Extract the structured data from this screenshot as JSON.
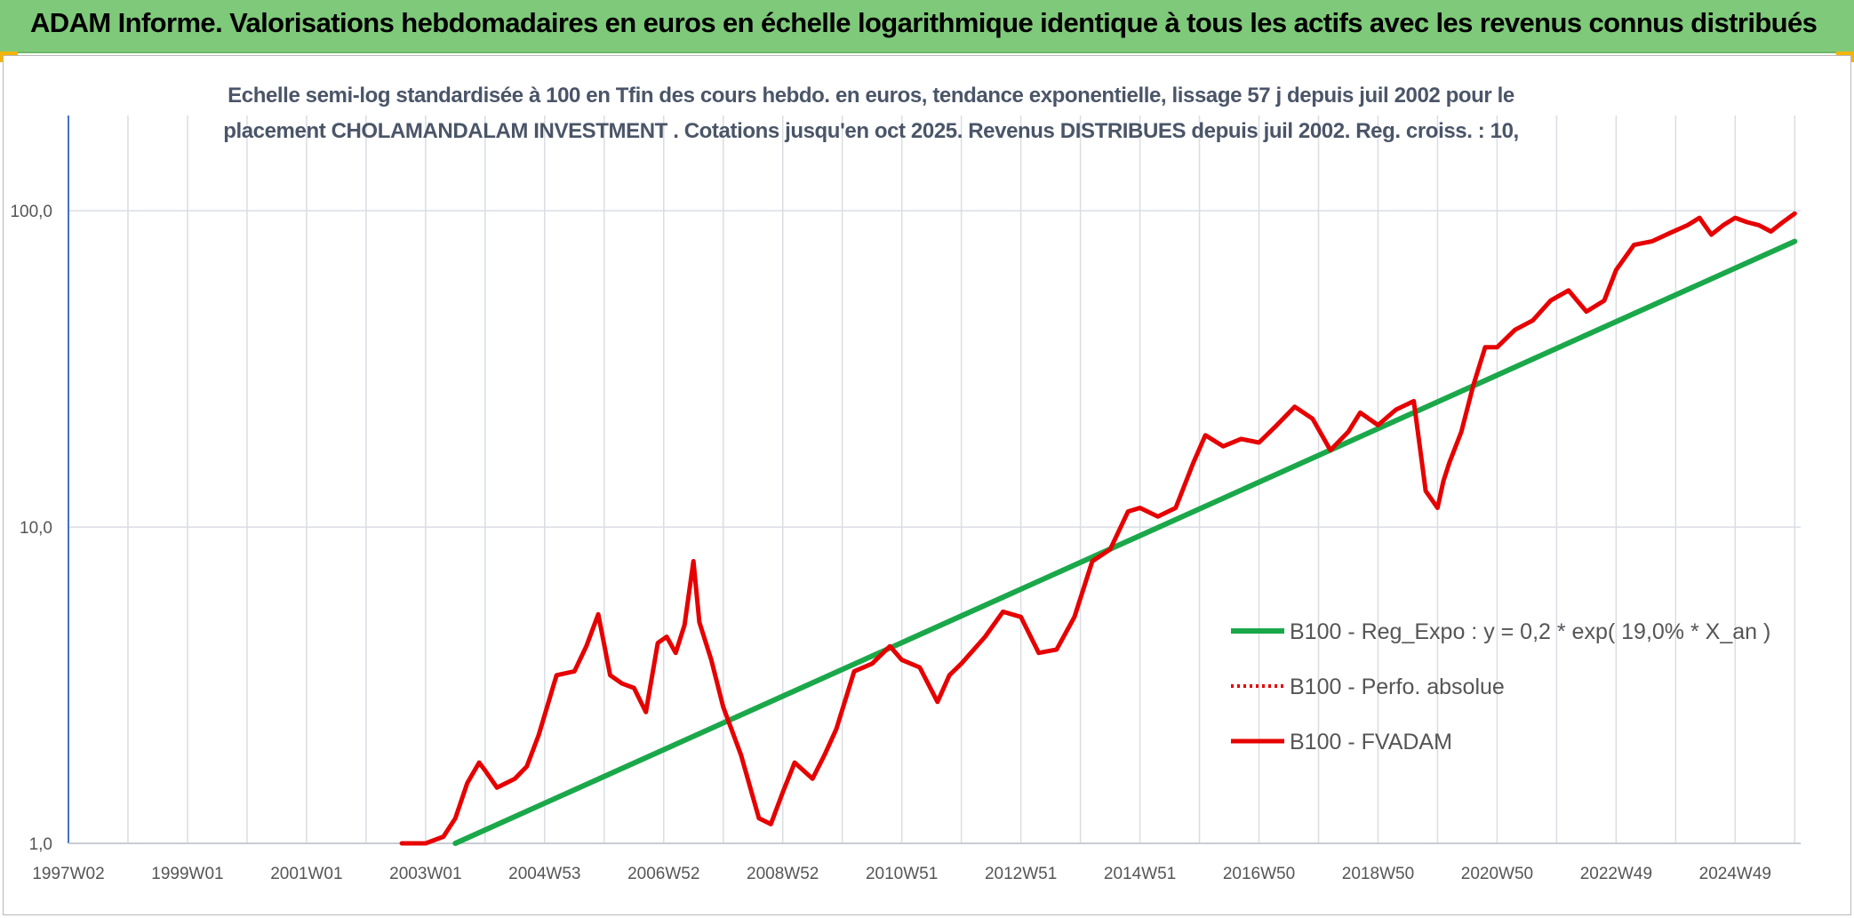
{
  "header": {
    "title": "ADAM Informe. Valorisations hebdomadaires en euros en échelle logarithmique identique à tous les actifs avec les revenus connus distribués"
  },
  "colors": {
    "header_bg": "#7fc97a",
    "trend": "#1aa84a",
    "fvadam": "#e60000",
    "perfo": "#e60000",
    "grid": "#d9dde3",
    "axis": "#4472c4"
  },
  "chart_data": {
    "type": "line",
    "title_lines": [
      "Echelle semi-log standardisée à 100 en Tfin des cours hebdo. en euros, tendance exponentielle, lissage 57 j depuis juil 2002 pour le",
      "placement CHOLAMANDALAM INVESTMENT . Cotations jusqu'en oct 2025. Revenus DISTRIBUES depuis juil 2002. Reg. croiss. : 10,"
    ],
    "y_scale": "log",
    "ylim": [
      1,
      200
    ],
    "xlim": [
      1997.0,
      2026.1
    ],
    "y_ticks": [
      1,
      10,
      100
    ],
    "y_tick_labels": [
      "1,0",
      "10,0",
      "100,0"
    ],
    "x_tick_labels": [
      "1997W02",
      "1999W01",
      "2001W01",
      "2003W01",
      "2004W53",
      "2006W52",
      "2008W52",
      "2010W51",
      "2012W51",
      "2014W51",
      "2016W50",
      "2018W50",
      "2020W50",
      "2022W49",
      "2024W49"
    ],
    "grid": true,
    "legend_position": "right",
    "series": [
      {
        "name": "B100 - Reg_Expo : y = 0,2 * exp( 19,0% *  X_an )",
        "style": "solid-green",
        "x": [
          2003.5,
          2026.0
        ],
        "y": [
          1.0,
          80.0
        ]
      },
      {
        "name": "B100 - Perfo. absolue",
        "style": "dotted-red",
        "x": [],
        "y": []
      },
      {
        "name": "B100 - FVADAM",
        "style": "solid-red",
        "x": [
          2002.6,
          2002.7,
          2003.0,
          2003.3,
          2003.5,
          2003.7,
          2003.9,
          2004.0,
          2004.2,
          2004.35,
          2004.5,
          2004.7,
          2004.9,
          2005.2,
          2005.5,
          2005.7,
          2005.9,
          2006.1,
          2006.3,
          2006.5,
          2006.7,
          2006.9,
          2007.05,
          2007.2,
          2007.35,
          2007.5,
          2007.6,
          2007.8,
          2008.0,
          2008.3,
          2008.6,
          2008.8,
          2009.0,
          2009.2,
          2009.5,
          2009.7,
          2009.9,
          2010.2,
          2010.5,
          2010.8,
          2011.0,
          2011.3,
          2011.6,
          2011.8,
          2012.0,
          2012.4,
          2012.7,
          2013.0,
          2013.3,
          2013.6,
          2013.9,
          2014.2,
          2014.5,
          2014.8,
          2015.0,
          2015.3,
          2015.6,
          2015.9,
          2016.1,
          2016.4,
          2016.7,
          2017.0,
          2017.3,
          2017.6,
          2017.9,
          2018.2,
          2018.5,
          2018.7,
          2019.0,
          2019.3,
          2019.6,
          2019.8,
          2020.0,
          2020.1,
          2020.2,
          2020.4,
          2020.6,
          2020.8,
          2021.0,
          2021.3,
          2021.6,
          2021.9,
          2022.2,
          2022.5,
          2022.8,
          2023.0,
          2023.3,
          2023.6,
          2023.9,
          2024.2,
          2024.4,
          2024.6,
          2024.8,
          2025.0,
          2025.2,
          2025.4,
          2025.6,
          2025.8,
          2026.0
        ],
        "y": [
          1.0,
          0.9,
          0.95,
          1.05,
          1.2,
          1.55,
          1.8,
          1.7,
          1.5,
          1.55,
          1.6,
          1.75,
          2.2,
          3.4,
          3.5,
          4.2,
          5.3,
          3.4,
          3.2,
          3.1,
          2.6,
          4.3,
          4.5,
          4.0,
          4.9,
          7.8,
          5.0,
          3.8,
          2.7,
          1.9,
          1.2,
          1.15,
          1.45,
          1.8,
          1.6,
          1.9,
          2.3,
          3.5,
          3.7,
          4.2,
          3.8,
          3.6,
          2.8,
          3.4,
          3.7,
          4.5,
          5.4,
          5.2,
          4.0,
          4.1,
          5.2,
          7.8,
          8.5,
          11.2,
          11.5,
          10.8,
          11.5,
          16.0,
          19.5,
          18.0,
          19.0,
          18.5,
          21.0,
          24.0,
          22.0,
          17.5,
          20.0,
          23.0,
          21.0,
          23.5,
          25.0,
          13.0,
          11.5,
          14.0,
          16.0,
          20.0,
          28.0,
          37.0,
          37.0,
          42.0,
          45.0,
          52.0,
          56.0,
          48.0,
          52.0,
          65.0,
          78.0,
          80.0,
          85.0,
          90.0,
          95.0,
          84.0,
          90.0,
          95.0,
          92.0,
          90.0,
          86.0,
          92.0,
          98.0
        ]
      }
    ]
  }
}
